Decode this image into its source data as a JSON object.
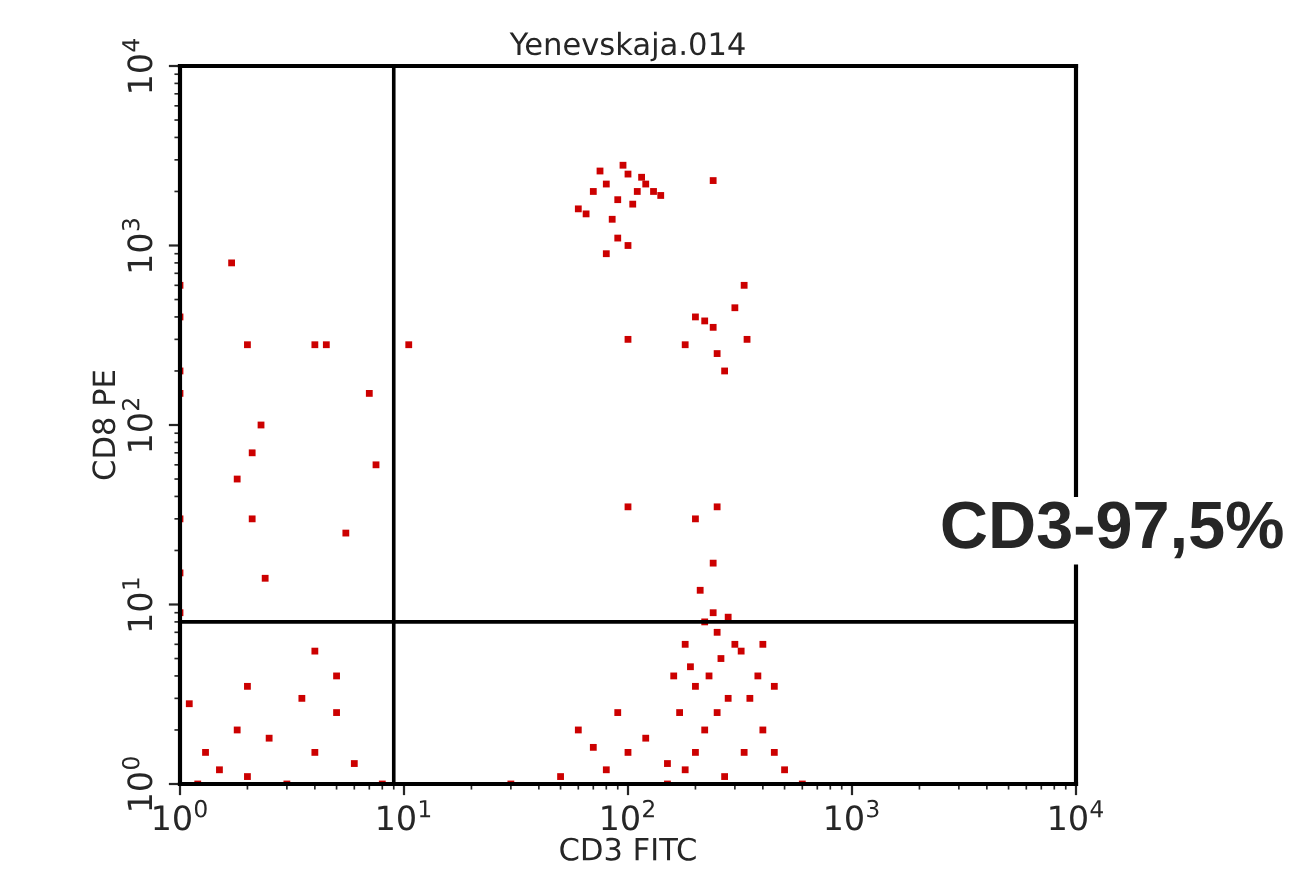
{
  "chart_data": {
    "type": "scatter",
    "title": "Yenevskaja.014",
    "xlabel": "CD3 FITC",
    "ylabel": "CD8 PE",
    "log": "xy",
    "xlim": [
      1,
      10000
    ],
    "ylim": [
      1,
      10000
    ],
    "xticks": [
      {
        "value": 1,
        "label": "10$^{0}$"
      },
      {
        "value": 10,
        "label": "10$^{1}$"
      },
      {
        "value": 100,
        "label": "10$^{2}$"
      },
      {
        "value": 1000,
        "label": "10$^{3}$"
      },
      {
        "value": 10000,
        "label": "10$^{4}$"
      }
    ],
    "yticks": [
      {
        "value": 1,
        "label": "10$^{0}$"
      },
      {
        "value": 10,
        "label": "10$^{1}$"
      },
      {
        "value": 100,
        "label": "10$^{2}$"
      },
      {
        "value": 1000,
        "label": "10$^{3}$"
      },
      {
        "value": 10000,
        "label": "10$^{4}$"
      }
    ],
    "grid": false,
    "legend": false,
    "marker": "square",
    "ref_lines": [
      {
        "axis": "x",
        "value": 9,
        "color": "#000000"
      },
      {
        "axis": "y",
        "value": 8,
        "color": "#000000"
      }
    ],
    "annotations": [
      "CD3-97,5%"
    ],
    "series": [
      {
        "color": "#cc0000",
        "x": [
          60,
          70,
          80,
          90,
          100,
          110,
          120,
          75,
          95,
          130,
          85,
          105,
          65,
          115,
          140,
          90,
          80,
          100,
          240,
          200,
          220,
          240,
          300,
          340,
          250,
          180,
          100,
          330,
          270,
          1.7,
          2,
          4,
          4.5,
          10.5,
          7,
          2.3,
          2.1,
          1.8,
          7.5,
          2.1,
          5.5,
          2.4,
          1,
          1,
          1,
          1,
          1,
          1,
          1,
          1.2,
          1.5,
          2,
          3,
          1.3,
          1.8,
          2.5,
          4,
          5,
          6,
          8,
          3.5,
          1.1,
          2,
          5,
          4,
          150,
          180,
          200,
          220,
          250,
          280,
          200,
          230,
          260,
          300,
          250,
          220,
          180,
          160,
          170,
          350,
          400,
          450,
          500,
          600,
          380,
          450,
          320,
          280,
          240,
          400,
          150,
          190,
          270,
          330,
          60,
          70,
          80,
          100,
          90,
          50,
          30,
          120,
          210,
          240,
          100,
          250,
          200
        ],
        "values": [
          1600,
          2000,
          2200,
          1800,
          2500,
          2000,
          2200,
          2600,
          2800,
          2000,
          1400,
          1700,
          1500,
          2400,
          1900,
          1100,
          900,
          1000,
          2300,
          400,
          380,
          350,
          450,
          300,
          250,
          280,
          300,
          600,
          200,
          800,
          280,
          280,
          280,
          280,
          150,
          100,
          70,
          50,
          60,
          30,
          25,
          14,
          200,
          400,
          600,
          150,
          30,
          15,
          9,
          1,
          1.2,
          1.1,
          1,
          1.5,
          2,
          1.8,
          1.5,
          2.5,
          1.3,
          1,
          3,
          2.8,
          3.5,
          4,
          5.5,
          1,
          1.2,
          1.5,
          2,
          2.5,
          3,
          3.5,
          4,
          5,
          6,
          7,
          8,
          6,
          4,
          2.5,
          3,
          2,
          1.5,
          1.2,
          1,
          4,
          3.5,
          5.5,
          8.5,
          9,
          6,
          1.3,
          4.5,
          1.1,
          1.5,
          2,
          1.6,
          1.2,
          1.5,
          2.5,
          1.1,
          1,
          1.8,
          12,
          17,
          35,
          35,
          30
        ]
      }
    ]
  }
}
